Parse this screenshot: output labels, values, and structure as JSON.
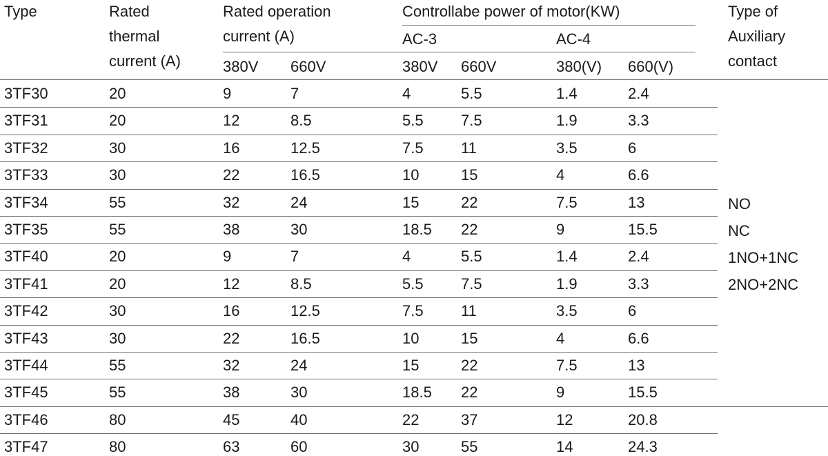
{
  "headers": {
    "type": "Type",
    "thermal": [
      "Rated",
      "thermal",
      "current (A)"
    ],
    "operation": [
      "Rated operation",
      "current (A)"
    ],
    "operation_v": [
      "380V",
      "660V"
    ],
    "power": "Controllabe power of  motor(KW)",
    "ac3": "AC-3",
    "ac4": "AC-4",
    "ac3_v": [
      "380V",
      "660V"
    ],
    "ac4_v": [
      "380(V)",
      "660(V)"
    ],
    "aux": [
      "Type of",
      "Auxiliary",
      "contact"
    ]
  },
  "rows": [
    [
      "3TF30",
      "20",
      "9",
      "7",
      "4",
      "5.5",
      "1.4",
      "2.4"
    ],
    [
      "3TF31",
      "20",
      "12",
      "8.5",
      "5.5",
      "7.5",
      "1.9",
      "3.3"
    ],
    [
      "3TF32",
      "30",
      "16",
      "12.5",
      "7.5",
      "11",
      "3.5",
      "6"
    ],
    [
      "3TF33",
      "30",
      "22",
      "16.5",
      "10",
      "15",
      "4",
      "6.6"
    ],
    [
      "3TF34",
      "55",
      "32",
      "24",
      "15",
      "22",
      "7.5",
      "13"
    ],
    [
      "3TF35",
      "55",
      "38",
      "30",
      "18.5",
      "22",
      "9",
      "15.5"
    ],
    [
      "3TF40",
      "20",
      "9",
      "7",
      "4",
      "5.5",
      "1.4",
      "2.4"
    ],
    [
      "3TF41",
      "20",
      "12",
      "8.5",
      "5.5",
      "7.5",
      "1.9",
      "3.3"
    ],
    [
      "3TF42",
      "30",
      "16",
      "12.5",
      "7.5",
      "11",
      "3.5",
      "6"
    ],
    [
      "3TF43",
      "30",
      "22",
      "16.5",
      "10",
      "15",
      "4",
      "6.6"
    ],
    [
      "3TF44",
      "55",
      "32",
      "24",
      "15",
      "22",
      "7.5",
      "13"
    ],
    [
      "3TF45",
      "55",
      "38",
      "30",
      "18.5",
      "22",
      "9",
      "15.5"
    ],
    [
      "3TF46",
      "80",
      "45",
      "40",
      "22",
      "37",
      "12",
      "20.8"
    ],
    [
      "3TF47",
      "80",
      "63",
      "60",
      "30",
      "55",
      "14",
      "24.3"
    ]
  ],
  "aux_values": [
    "NO",
    "NC",
    "1NO+1NC",
    "2NO+2NC"
  ]
}
